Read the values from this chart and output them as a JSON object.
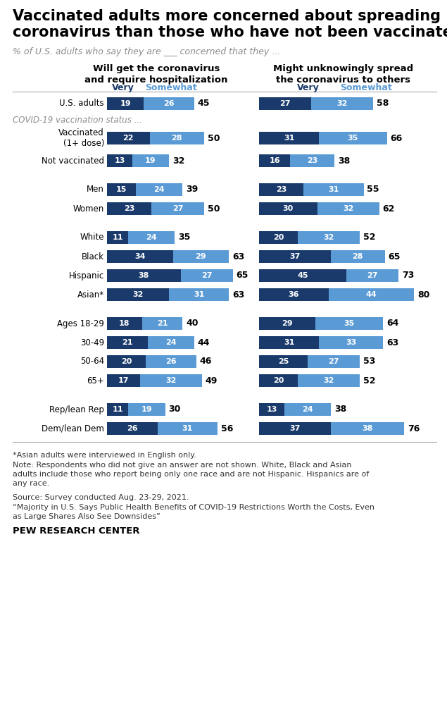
{
  "title": "Vaccinated adults more concerned about spreading\ncoronavirus than those who have not been vaccinated",
  "subtitle": "% of U.S. adults who say they are ___ concerned that they ...",
  "col1_header": "Will get the coronavirus\nand require hospitalization",
  "col2_header": "Might unknowingly spread\nthe coronavirus to others",
  "very_label": "Very",
  "somewhat_label": "Somewhat",
  "color_very": "#1a3a6b",
  "color_somewhat": "#5b9bd5",
  "rows": [
    {
      "label": "U.S. adults",
      "indent": 0,
      "is_section": false,
      "is_spacer": false,
      "two_line": false,
      "v1": 19,
      "s1": 26,
      "t1": 45,
      "v2": 27,
      "s2": 32,
      "t2": 58
    },
    {
      "label": "COVID-19 vaccination status ...",
      "indent": 0,
      "is_section": true,
      "is_spacer": false,
      "two_line": false,
      "v1": null,
      "s1": null,
      "t1": null,
      "v2": null,
      "s2": null,
      "t2": null
    },
    {
      "label": "Vaccinated\n(1+ dose)",
      "indent": 1,
      "is_section": false,
      "is_spacer": false,
      "two_line": true,
      "v1": 22,
      "s1": 28,
      "t1": 50,
      "v2": 31,
      "s2": 35,
      "t2": 66
    },
    {
      "label": "Not vaccinated",
      "indent": 1,
      "is_section": false,
      "is_spacer": false,
      "two_line": false,
      "v1": 13,
      "s1": 19,
      "t1": 32,
      "v2": 16,
      "s2": 23,
      "t2": 38
    },
    {
      "label": "",
      "indent": 0,
      "is_section": false,
      "is_spacer": true,
      "two_line": false,
      "v1": null,
      "s1": null,
      "t1": null,
      "v2": null,
      "s2": null,
      "t2": null
    },
    {
      "label": "Men",
      "indent": 0,
      "is_section": false,
      "is_spacer": false,
      "two_line": false,
      "v1": 15,
      "s1": 24,
      "t1": 39,
      "v2": 23,
      "s2": 31,
      "t2": 55
    },
    {
      "label": "Women",
      "indent": 0,
      "is_section": false,
      "is_spacer": false,
      "two_line": false,
      "v1": 23,
      "s1": 27,
      "t1": 50,
      "v2": 30,
      "s2": 32,
      "t2": 62
    },
    {
      "label": "",
      "indent": 0,
      "is_section": false,
      "is_spacer": true,
      "two_line": false,
      "v1": null,
      "s1": null,
      "t1": null,
      "v2": null,
      "s2": null,
      "t2": null
    },
    {
      "label": "White",
      "indent": 0,
      "is_section": false,
      "is_spacer": false,
      "two_line": false,
      "v1": 11,
      "s1": 24,
      "t1": 35,
      "v2": 20,
      "s2": 32,
      "t2": 52
    },
    {
      "label": "Black",
      "indent": 0,
      "is_section": false,
      "is_spacer": false,
      "two_line": false,
      "v1": 34,
      "s1": 29,
      "t1": 63,
      "v2": 37,
      "s2": 28,
      "t2": 65
    },
    {
      "label": "Hispanic",
      "indent": 0,
      "is_section": false,
      "is_spacer": false,
      "two_line": false,
      "v1": 38,
      "s1": 27,
      "t1": 65,
      "v2": 45,
      "s2": 27,
      "t2": 73
    },
    {
      "label": "Asian*",
      "indent": 0,
      "is_section": false,
      "is_spacer": false,
      "two_line": false,
      "v1": 32,
      "s1": 31,
      "t1": 63,
      "v2": 36,
      "s2": 44,
      "t2": 80
    },
    {
      "label": "",
      "indent": 0,
      "is_section": false,
      "is_spacer": true,
      "two_line": false,
      "v1": null,
      "s1": null,
      "t1": null,
      "v2": null,
      "s2": null,
      "t2": null
    },
    {
      "label": "Ages 18-29",
      "indent": 0,
      "is_section": false,
      "is_spacer": false,
      "two_line": false,
      "v1": 18,
      "s1": 21,
      "t1": 40,
      "v2": 29,
      "s2": 35,
      "t2": 64
    },
    {
      "label": "30-49",
      "indent": 0,
      "is_section": false,
      "is_spacer": false,
      "two_line": false,
      "v1": 21,
      "s1": 24,
      "t1": 44,
      "v2": 31,
      "s2": 33,
      "t2": 63
    },
    {
      "label": "50-64",
      "indent": 0,
      "is_section": false,
      "is_spacer": false,
      "two_line": false,
      "v1": 20,
      "s1": 26,
      "t1": 46,
      "v2": 25,
      "s2": 27,
      "t2": 53
    },
    {
      "label": "65+",
      "indent": 0,
      "is_section": false,
      "is_spacer": false,
      "two_line": false,
      "v1": 17,
      "s1": 32,
      "t1": 49,
      "v2": 20,
      "s2": 32,
      "t2": 52
    },
    {
      "label": "",
      "indent": 0,
      "is_section": false,
      "is_spacer": true,
      "two_line": false,
      "v1": null,
      "s1": null,
      "t1": null,
      "v2": null,
      "s2": null,
      "t2": null
    },
    {
      "label": "Rep/lean Rep",
      "indent": 0,
      "is_section": false,
      "is_spacer": false,
      "two_line": false,
      "v1": 11,
      "s1": 19,
      "t1": 30,
      "v2": 13,
      "s2": 24,
      "t2": 38
    },
    {
      "label": "Dem/lean Dem",
      "indent": 0,
      "is_section": false,
      "is_spacer": false,
      "two_line": false,
      "v1": 26,
      "s1": 31,
      "t1": 56,
      "v2": 37,
      "s2": 38,
      "t2": 76
    }
  ],
  "footnote1": "*Asian adults were interviewed in English only.",
  "footnote2": "Note: Respondents who did not give an answer are not shown. White, Black and Asian\nadults include those who report being only one race and are not Hispanic. Hispanics are of\nany race.",
  "footnote3": "Source: Survey conducted Aug. 23-29, 2021.",
  "footnote4": "“Majority in U.S. Says Public Health Benefits of COVID-19 Restrictions Worth the Costs, Even\nas Large Shares Also See Downsides”",
  "pew_label": "PEW RESEARCH CENTER"
}
